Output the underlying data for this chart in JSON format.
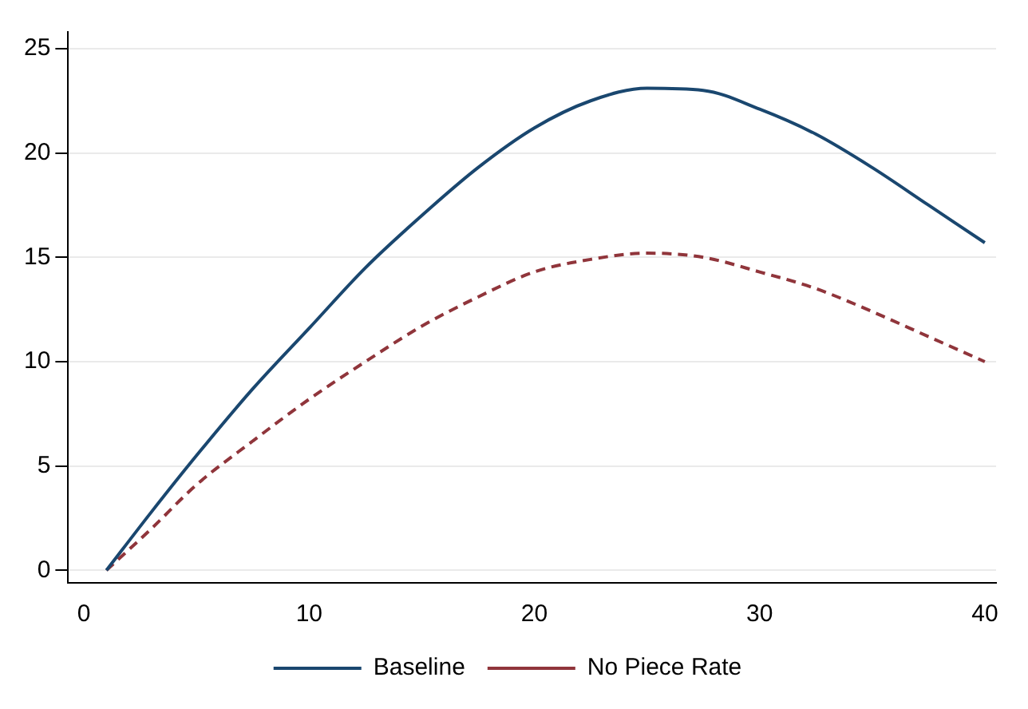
{
  "chart_data": {
    "type": "line",
    "x": [
      1,
      3,
      5,
      7.5,
      10,
      12.5,
      15,
      17.5,
      20,
      22.5,
      25,
      27.5,
      30,
      32.5,
      35,
      37.5,
      40
    ],
    "series": [
      {
        "name": "Baseline",
        "color": "#1a476f",
        "line_style": "solid",
        "values": [
          0,
          2.8,
          5.5,
          8.7,
          11.6,
          14.5,
          17.0,
          19.3,
          21.2,
          22.5,
          23.1,
          23.0,
          22.1,
          20.9,
          19.3,
          17.5,
          15.7
        ]
      },
      {
        "name": "No Piece Rate",
        "color": "#90353b",
        "line_style": "dashed",
        "values": [
          0,
          2.0,
          4.1,
          6.2,
          8.2,
          10.0,
          11.7,
          13.1,
          14.3,
          14.9,
          15.2,
          15.0,
          14.3,
          13.5,
          12.4,
          11.2,
          10.0
        ]
      }
    ],
    "xlim": [
      -0.7,
      40.5
    ],
    "xticks": [
      0,
      10,
      20,
      30,
      40
    ],
    "ylim": [
      -0.6,
      25.8
    ],
    "yticks": [
      0,
      5,
      10,
      15,
      20,
      25
    ],
    "grid": "y",
    "legend": "bottom",
    "marker": "none"
  }
}
